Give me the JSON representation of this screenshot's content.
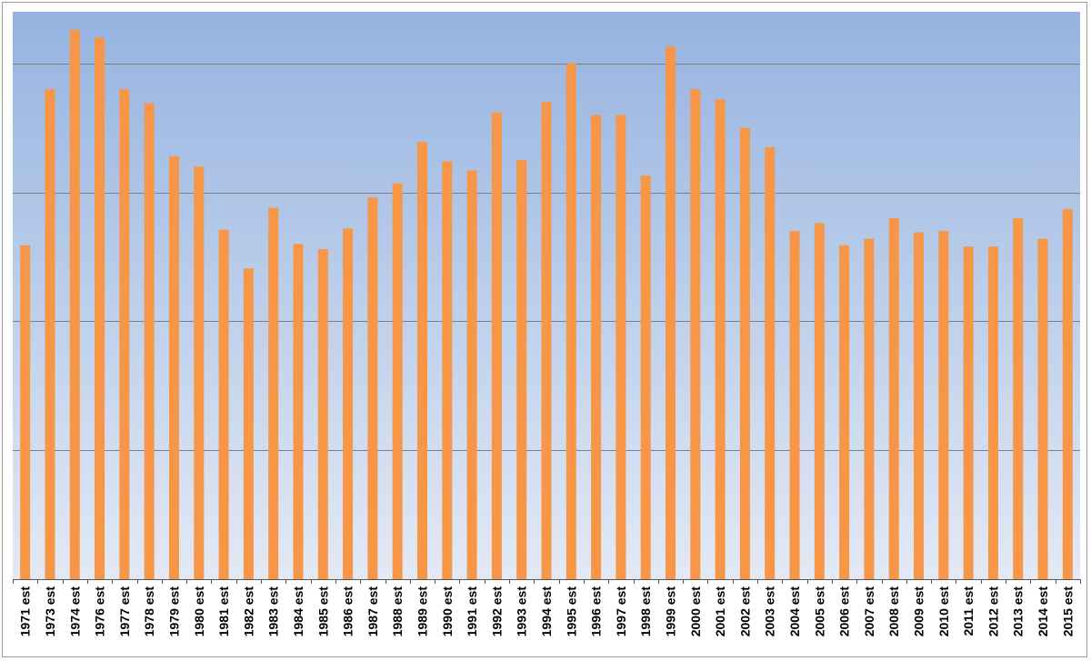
{
  "chart_data": {
    "type": "bar",
    "title": "",
    "xlabel": "",
    "ylabel": "",
    "ylim": [
      0,
      4
    ],
    "gridlines": [
      1,
      2,
      3,
      4
    ],
    "grid": true,
    "legend": "none",
    "colors": {
      "bar": "#F79646",
      "plot_top": "#95B3E0",
      "plot_bottom": "#E3E9F4",
      "grid": "#7f7f7f",
      "axis": "#555555"
    },
    "categories": [
      "1971 est",
      "1973 est",
      "1974 est",
      "1976 est",
      "1977 est",
      "1978 est",
      "1979 est",
      "1980 est",
      "1981 est",
      "1982 est",
      "1983 est",
      "1984 est",
      "1985 est",
      "1986 est",
      "1987 est",
      "1988 est",
      "1989 est",
      "1990 est",
      "1991 est",
      "1992 est",
      "1993 est",
      "1994 est",
      "1995 est",
      "1996 est",
      "1997 est",
      "1998 est",
      "1999 est",
      "2000 est",
      "2001 est",
      "2002 est",
      "2003 est",
      "2004 est",
      "2005 est",
      "2006 est",
      "2007 est",
      "2008 est",
      "2009 est",
      "2010 est",
      "2011 est",
      "2012 est",
      "2013 est",
      "2014 est",
      "2015 est"
    ],
    "values": [
      2.59,
      3.8,
      4.26,
      4.2,
      3.8,
      3.69,
      3.28,
      3.2,
      2.71,
      2.41,
      2.88,
      2.6,
      2.56,
      2.72,
      2.96,
      3.07,
      3.39,
      3.24,
      3.17,
      3.62,
      3.25,
      3.7,
      4.0,
      3.6,
      3.6,
      3.13,
      4.13,
      3.8,
      3.72,
      3.5,
      3.35,
      2.7,
      2.76,
      2.59,
      2.64,
      2.8,
      2.69,
      2.7,
      2.58,
      2.58,
      2.8,
      2.64,
      2.87
    ]
  }
}
